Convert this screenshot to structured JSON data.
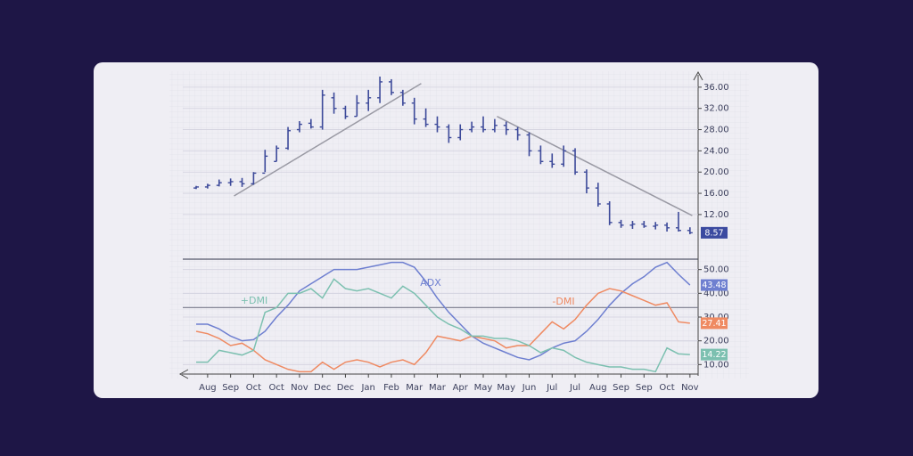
{
  "chart_data": [
    {
      "type": "ohlc",
      "color": "#3d4a9a",
      "open": [
        17,
        17.2,
        17.5,
        18,
        18.2,
        17.8,
        19.8,
        22,
        24.5,
        28,
        29.2,
        28.5,
        34,
        32,
        30.5,
        33,
        34,
        37,
        35,
        33,
        30,
        29,
        28.5,
        26.5,
        28,
        28.5,
        28,
        28.8,
        28,
        27,
        24,
        22,
        21.5,
        24,
        20,
        17,
        14,
        10.5,
        10,
        10.2,
        9.8,
        10,
        9.5,
        9
      ],
      "high": [
        17.4,
        17.8,
        18.6,
        18.8,
        18.9,
        20,
        24.2,
        25,
        28.5,
        29.6,
        30,
        35.5,
        35,
        32.5,
        34.5,
        35.5,
        38,
        37.5,
        35.5,
        34,
        32,
        30.5,
        29,
        29,
        29.5,
        30.5,
        30,
        29.5,
        28.5,
        27.5,
        25,
        23.5,
        25,
        24.5,
        20.5,
        18,
        14.5,
        11,
        10.8,
        10.8,
        10.6,
        10.5,
        12.5,
        9.6
      ],
      "low": [
        16.8,
        16.9,
        17.3,
        17.4,
        17.2,
        17.6,
        20,
        22,
        24.2,
        27.5,
        28.2,
        28,
        31,
        30,
        30.5,
        31.5,
        33,
        34.5,
        32.5,
        29,
        28.5,
        27.5,
        25.5,
        26,
        27.5,
        27.5,
        27.5,
        27,
        26,
        23,
        21.5,
        20.8,
        21,
        19.5,
        16,
        13.5,
        10,
        9.5,
        9.3,
        9.5,
        9.2,
        8.8,
        8.8,
        8.3
      ],
      "close": [
        17.2,
        17.5,
        18,
        18.2,
        17.8,
        19.8,
        23,
        24.5,
        27.8,
        29,
        28.5,
        34.5,
        32,
        30.5,
        33,
        34,
        37,
        35,
        33,
        30,
        29,
        28.5,
        26.5,
        28,
        28.5,
        28,
        28.8,
        28,
        27,
        24,
        22,
        21.5,
        24,
        20,
        17,
        14,
        10.5,
        10,
        10.2,
        9.8,
        10,
        9.5,
        9,
        8.57
      ],
      "ylim": [
        4.6,
        39
      ],
      "yticks": [
        {
          "value": 12,
          "label": "12.00"
        },
        {
          "value": 16,
          "label": "16.00"
        },
        {
          "value": 20,
          "label": "20.00"
        },
        {
          "value": 24,
          "label": "24.00"
        },
        {
          "value": 28,
          "label": "28.00"
        },
        {
          "value": 32,
          "label": "32.00"
        },
        {
          "value": 36,
          "label": "36.00"
        }
      ],
      "trendlines": [
        {
          "x": [
            3.3,
            19.6
          ],
          "y": [
            15.5,
            36.7
          ]
        },
        {
          "x": [
            26.2,
            43.2
          ],
          "y": [
            30.5,
            11.8
          ]
        }
      ],
      "grid": true
    },
    {
      "type": "line",
      "categories": [
        null,
        "Aug",
        null,
        "Sep",
        null,
        "Oct",
        null,
        "Oct",
        null,
        "Nov",
        null,
        "Dec",
        null,
        "Dec",
        null,
        "Jan",
        null,
        "Feb",
        null,
        "Mar",
        null,
        "Mar",
        null,
        "Apr",
        null,
        "May",
        null,
        "May",
        null,
        "Jun",
        null,
        "Jul",
        null,
        "Jul",
        null,
        "Aug",
        null,
        "Sep",
        null,
        "Sep",
        null,
        "Oct",
        null,
        "Nov"
      ],
      "series": [
        {
          "name": "ADX",
          "color": "#6e7fd0",
          "values": [
            27,
            27,
            25,
            22,
            20,
            20.5,
            24,
            30,
            35,
            41,
            44,
            47,
            50,
            50,
            50,
            51,
            52,
            53,
            53,
            51,
            45,
            38,
            32,
            27,
            22,
            19,
            17,
            15,
            13,
            12,
            14,
            17,
            19,
            20,
            24,
            29,
            35,
            40,
            44,
            47,
            51,
            53,
            48,
            43.48
          ]
        },
        {
          "name": "-DMI",
          "color": "#ef8a62",
          "values": [
            24,
            23,
            21,
            18,
            19,
            16,
            12,
            10,
            8,
            7,
            7,
            11,
            8,
            11,
            12,
            11,
            9,
            11,
            12,
            10,
            15,
            22,
            21,
            20,
            22,
            21,
            20,
            17,
            18,
            18,
            23,
            28,
            25,
            29,
            35,
            40,
            42,
            41,
            39,
            37,
            35,
            36,
            28,
            27.41
          ]
        },
        {
          "name": "+DMI",
          "color": "#7cc0b0",
          "values": [
            11,
            11,
            16,
            15,
            14,
            16,
            32,
            34,
            40,
            40,
            42,
            38,
            46,
            42,
            41,
            42,
            40,
            38,
            43,
            40,
            35,
            30,
            27,
            25,
            22,
            22,
            21,
            21,
            20,
            18,
            15,
            17,
            16,
            13,
            11,
            10,
            9,
            9,
            8,
            8,
            7,
            17,
            14.5,
            14.22
          ]
        }
      ],
      "ylim": [
        6,
        54
      ],
      "yticks": [
        {
          "value": 10,
          "label": "10.00"
        },
        {
          "value": 20,
          "label": "20.00"
        },
        {
          "value": 30,
          "label": "30.00"
        },
        {
          "value": 40,
          "label": "40.00"
        },
        {
          "value": 50,
          "label": "50.00"
        }
      ],
      "reference_lines": [
        34
      ],
      "grid": true
    }
  ]
}
